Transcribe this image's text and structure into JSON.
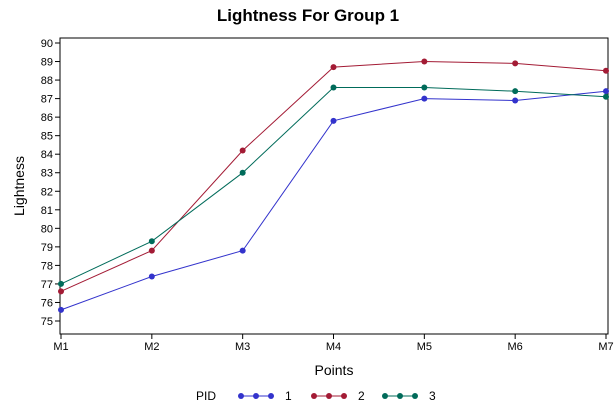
{
  "chart_data": {
    "type": "line",
    "title": "Lightness For Group 1",
    "xlabel": "Points",
    "ylabel": "Lightness",
    "categories": [
      "M1",
      "M2",
      "M3",
      "M4",
      "M5",
      "M6",
      "M7"
    ],
    "ylim": [
      75,
      90
    ],
    "yticks": [
      75,
      76,
      77,
      78,
      79,
      80,
      81,
      82,
      83,
      84,
      85,
      86,
      87,
      88,
      89,
      90
    ],
    "grid": false,
    "legend": {
      "title": "PID",
      "position": "bottom"
    },
    "series": [
      {
        "name": "1",
        "color": "#3333cc",
        "values": [
          75.6,
          77.4,
          78.8,
          85.8,
          87.0,
          86.9,
          87.4
        ]
      },
      {
        "name": "2",
        "color": "#a31b35",
        "values": [
          76.6,
          78.8,
          84.2,
          88.7,
          89.0,
          88.9,
          88.5
        ]
      },
      {
        "name": "3",
        "color": "#006b5a",
        "values": [
          77.0,
          79.3,
          83.0,
          87.6,
          87.6,
          87.4,
          87.1
        ]
      }
    ]
  }
}
